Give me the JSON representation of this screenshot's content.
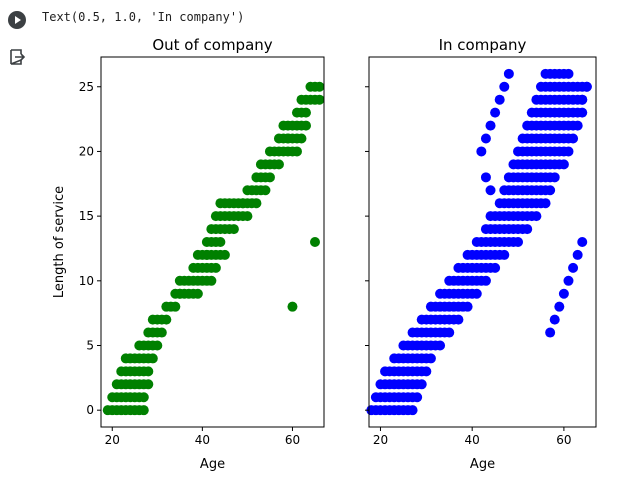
{
  "output_text": "Text(0.5, 1.0, 'In company')",
  "icons": {
    "run": "run-cell-icon",
    "output": "output-icon"
  },
  "chart_data": [
    {
      "type": "scatter",
      "title": "Out of company",
      "xlabel": "Age",
      "ylabel": "Length of service",
      "xlim": [
        17.5,
        67
      ],
      "ylim": [
        -1.3,
        27.3
      ],
      "xticks": [
        20,
        40,
        60
      ],
      "yticks": [
        0,
        5,
        10,
        15,
        20,
        25
      ],
      "color": "#008000",
      "bands": [
        [
          0,
          19,
          27
        ],
        [
          1,
          20,
          27
        ],
        [
          2,
          21,
          28
        ],
        [
          3,
          22,
          28
        ],
        [
          4,
          23,
          29
        ],
        [
          5,
          26,
          30
        ],
        [
          6,
          28,
          31
        ],
        [
          7,
          29,
          32
        ],
        [
          8,
          32,
          34
        ],
        [
          9,
          34,
          39
        ],
        [
          10,
          35,
          42
        ],
        [
          11,
          38,
          43
        ],
        [
          12,
          39,
          44
        ],
        [
          13,
          41,
          44
        ],
        [
          14,
          42,
          47
        ],
        [
          15,
          43,
          50
        ],
        [
          16,
          44,
          52
        ],
        [
          17,
          50,
          54
        ],
        [
          18,
          52,
          55
        ],
        [
          19,
          53,
          57
        ],
        [
          20,
          55,
          60
        ],
        [
          21,
          57,
          62
        ],
        [
          22,
          58,
          62
        ],
        [
          23,
          61,
          63
        ],
        [
          24,
          62,
          66
        ],
        [
          25,
          64,
          66
        ]
      ],
      "points": [
        {
          "x": 60,
          "y": 8
        },
        {
          "x": 65,
          "y": 13
        },
        {
          "x": 63,
          "y": 22
        },
        {
          "x": 59,
          "y": 21
        },
        {
          "x": 61,
          "y": 20
        },
        {
          "x": 49,
          "y": 16
        },
        {
          "x": 41,
          "y": 12
        },
        {
          "x": 45,
          "y": 12
        },
        {
          "x": 35,
          "y": 9
        }
      ]
    },
    {
      "type": "scatter",
      "title": "In company",
      "xlabel": "Age",
      "ylabel": "",
      "xlim": [
        17.5,
        67
      ],
      "ylim": [
        -1.3,
        27.3
      ],
      "xticks": [
        20,
        40,
        60
      ],
      "yticks": [
        0,
        5,
        10,
        15,
        20,
        25
      ],
      "color": "#0000ff",
      "bands": [
        [
          0,
          18,
          27
        ],
        [
          1,
          19,
          28
        ],
        [
          2,
          20,
          29
        ],
        [
          3,
          21,
          30
        ],
        [
          4,
          23,
          31
        ],
        [
          5,
          25,
          33
        ],
        [
          6,
          27,
          35
        ],
        [
          7,
          29,
          37
        ],
        [
          8,
          31,
          39
        ],
        [
          9,
          33,
          41
        ],
        [
          10,
          35,
          43
        ],
        [
          11,
          37,
          45
        ],
        [
          12,
          39,
          47
        ],
        [
          13,
          41,
          50
        ],
        [
          14,
          43,
          52
        ],
        [
          15,
          44,
          54
        ],
        [
          16,
          46,
          56
        ],
        [
          17,
          47,
          57
        ],
        [
          18,
          48,
          58
        ],
        [
          19,
          49,
          60
        ],
        [
          20,
          50,
          61
        ],
        [
          21,
          51,
          62
        ],
        [
          22,
          52,
          63
        ],
        [
          23,
          53,
          64
        ],
        [
          24,
          54,
          64
        ],
        [
          25,
          55,
          65
        ],
        [
          26,
          56,
          61
        ]
      ],
      "points": [
        {
          "x": 44,
          "y": 17
        },
        {
          "x": 43,
          "y": 18
        },
        {
          "x": 42,
          "y": 20
        },
        {
          "x": 43,
          "y": 21
        },
        {
          "x": 44,
          "y": 22
        },
        {
          "x": 45,
          "y": 23
        },
        {
          "x": 46,
          "y": 24
        },
        {
          "x": 47,
          "y": 25
        },
        {
          "x": 48,
          "y": 26
        },
        {
          "x": 57,
          "y": 6
        },
        {
          "x": 58,
          "y": 7
        },
        {
          "x": 59,
          "y": 8
        },
        {
          "x": 60,
          "y": 9
        },
        {
          "x": 61,
          "y": 10
        },
        {
          "x": 62,
          "y": 11
        },
        {
          "x": 63,
          "y": 12
        },
        {
          "x": 64,
          "y": 13
        },
        {
          "x": 65,
          "y": 25
        },
        {
          "x": 64,
          "y": 24
        }
      ]
    }
  ]
}
